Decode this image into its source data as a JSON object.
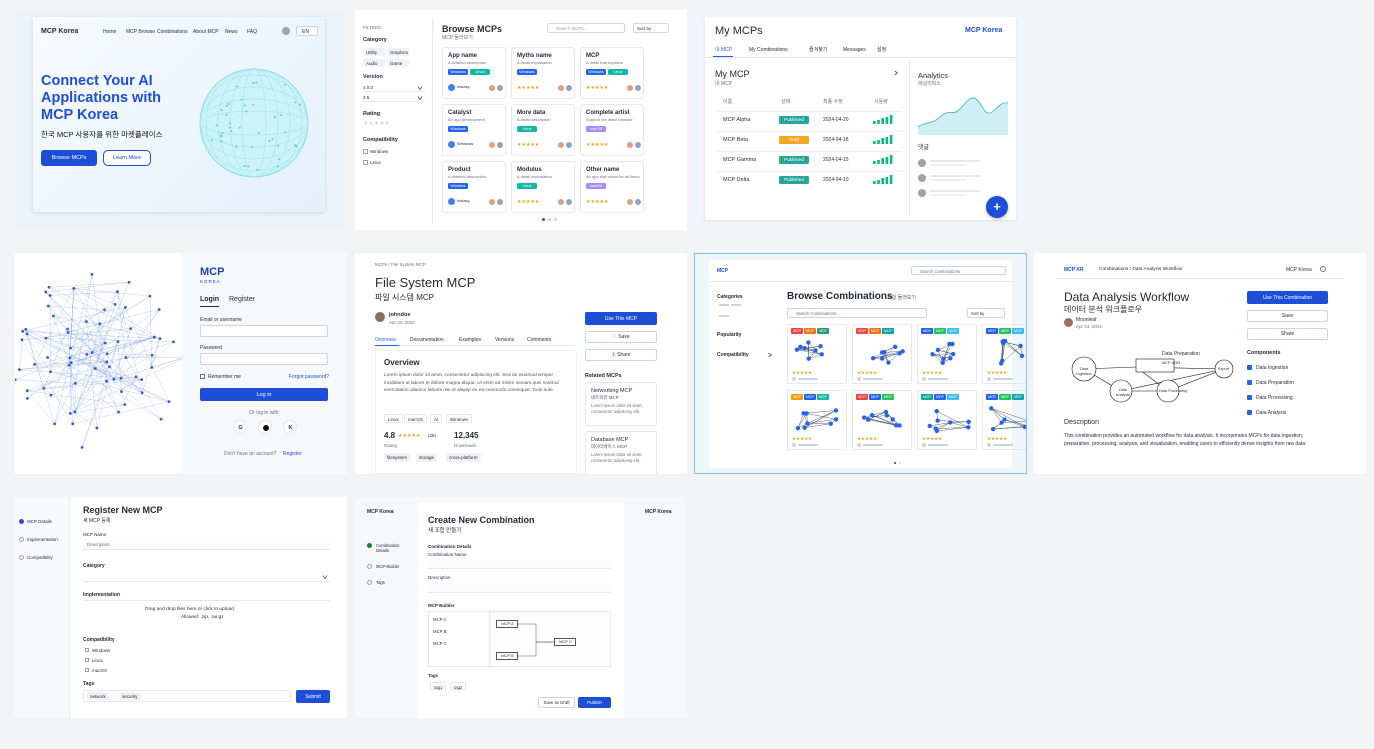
{
  "hero": {
    "brand": "MCP Korea",
    "nav": [
      "Home",
      "MCP Browse",
      "Combinations",
      "About MCP",
      "News",
      "FAQ"
    ],
    "lang": "EN",
    "title": "Connect Your AI Applications with MCP Korea",
    "subtitle": "한국 MCP 사용자를 위한 마켓플레이스",
    "primary_button": "Browse MCPs",
    "secondary_button": "Learn More"
  },
  "stars": "★★★★★",
  "browse": {
    "filters": "FILTERS",
    "category_label": "Category",
    "categories": [
      "Utility",
      "Graphics",
      "Audio",
      "Game"
    ],
    "version_label": "Version",
    "versions": [
      "4.0.0",
      "3.5"
    ],
    "rating_label": "Rating",
    "compat_label": "Compatibility",
    "compat": [
      "Windows",
      "Linux"
    ],
    "title": "Browse MCPs",
    "subtitle": "MCP 둘러보기",
    "search": "Search MCPs...",
    "sort": "Sort by",
    "cards": [
      {
        "name": "App name",
        "desc": "A detailed description",
        "tags": [
          "Windows",
          "Linux"
        ],
        "author": "Instasy"
      },
      {
        "name": "Myths name",
        "desc": "A detail explanation",
        "tags": [
          "Windows"
        ]
      },
      {
        "name": "MCP",
        "desc": "A detail that explains",
        "tags": [
          "Windows",
          "Linux"
        ]
      },
      {
        "name": "Catalyst",
        "desc": "An app development",
        "tags": [
          "Windows"
        ],
        "author": "Windows"
      },
      {
        "name": "More data",
        "desc": "A detail description",
        "tags": [
          "Linux"
        ]
      },
      {
        "name": "Complete artist",
        "desc": "Support the latest browser",
        "tags": [
          "macOS"
        ]
      },
      {
        "name": "Product",
        "desc": "A detailed description",
        "tags": [
          "Windows"
        ],
        "author": "Instasy"
      },
      {
        "name": "Modulus",
        "desc": "A detail explanation",
        "tags": [
          "Linux"
        ]
      },
      {
        "name": "Other name",
        "desc": "An app that works for all times",
        "tags": [
          "macOS"
        ]
      }
    ]
  },
  "my_mcps": {
    "title": "My MCPs",
    "brand": "MCP Korea",
    "tabs": [
      "내 MCP",
      "My Combinations",
      "즐겨찾기",
      "Messages",
      "설정"
    ],
    "section": "My MCP",
    "section_sub": "내 MCP",
    "columns": [
      "이름",
      "상태",
      "최종 수정",
      "사용량"
    ],
    "rows": [
      [
        "MCP Alpha",
        "Published",
        "2024-04-20"
      ],
      [
        "MCP Beta",
        "Draft",
        "2024-04-18"
      ],
      [
        "MCP Gamma",
        "Published",
        "2024-04-15"
      ],
      [
        "MCP Delta",
        "Published",
        "2024-04-10"
      ]
    ],
    "analytics": "Analytics",
    "analytics_sub": "애널리틱스",
    "comments": "댓글",
    "add_button": "+"
  },
  "login": {
    "logo": "MCP",
    "logo_sub": "KOREA",
    "tabs": [
      "Login",
      "Register"
    ],
    "email": "Email or username",
    "password": "Password",
    "remember": "Remember me",
    "forgot": "Forgot password?",
    "submit": "Log in",
    "or": "Or log in with",
    "social": [
      "G",
      "K"
    ],
    "no_account": "Don't have an account?",
    "register": "Register"
  },
  "detail": {
    "breadcrumb": "MCPs / File System MCP",
    "title": "File System MCP",
    "subtitle": "파일 시스템 MCP",
    "author": "johndoe",
    "date": "Apr 24, 2024",
    "tabs": [
      "Overview",
      "Documentation",
      "Examples",
      "Versions",
      "Comments"
    ],
    "overview_title": "Overview",
    "overview_text": "Lorem ipsum dolor sit amet, consectetur adipiscing elit. Sed do eiusmod tempor incididunt ut labore et dolore magna aliqua. Ut enim ad minim veniam quis nostrud exercitation ullamco laboris nisi ut aliquip ex ea commodo consequat. Duis aute",
    "platforms": [
      "Linux",
      "macOS",
      "AI",
      "Windows"
    ],
    "rating": "4.8",
    "rating_count": "(28)",
    "rating_label": "Rating",
    "downloads": "12,345",
    "downloads_label": "Downloads",
    "keywords": [
      "filesystem",
      "storage",
      "cross-platform"
    ],
    "actions": [
      "Use This MCP",
      "♡ Save",
      "⇪ Share"
    ],
    "related_label": "Related MCPs",
    "related": [
      {
        "name": "Networking MCP",
        "subtitle": "네트워킹 MCP",
        "desc": "Lorem ipsum dolor sit amet, consectetur adipiscing elit."
      },
      {
        "name": "Database MCP",
        "subtitle": "데이터베이스 MCP",
        "desc": "Lorem ipsum dolor sit amet, consectetur adipiscing elit."
      }
    ]
  },
  "combos": {
    "logo": "MCP",
    "search_top": "Search Combinations",
    "title": "Browse Combinations",
    "subtitle": "조합 둘러보기",
    "sidebar": [
      "Categories",
      "Popularity",
      "Compatibility"
    ],
    "search": "Search Combinations...",
    "sort": "Sort by",
    "tag": "MCP"
  },
  "workflow": {
    "logo": "MCP KR",
    "breadcrumb": "Combinations / Data Analysis Workflow",
    "brand": "MCP Korea",
    "title": "Data Analysis Workflow",
    "subtitle": "데이터 분석 워크플로우",
    "author": "Moonleaf",
    "date": "Apr 24, 2024",
    "buttons": [
      "Use This Combination",
      "Save",
      "Share"
    ],
    "components_label": "Components",
    "components": [
      "Data Ingestion",
      "Data Preparation",
      "Data Processing",
      "Data Analysis"
    ],
    "nodes": [
      "Data Ingestion",
      "Data Preparation",
      "MCP-4253",
      "Data Analysis",
      "Data Processing",
      "Export"
    ],
    "description_label": "Description",
    "description": "This combination provides an automated workflow for data analysis. It incorporates MCPs for data ingestion, preparation, processing, analysis, and visualization, enabling users to efficiently derive insights from raw data."
  },
  "register": {
    "steps": [
      "MCP Details",
      "Implementation",
      "Compatibility"
    ],
    "title": "Register New MCP",
    "subtitle": "새 MCP 등록",
    "name_label": "MCP Name",
    "name_placeholder": "Description",
    "category_label": "Category",
    "implementation_label": "Implementation",
    "drop_text": "Drag and drop files here or click to upload",
    "allowed": "Allowed: .zip, .tar.gz",
    "compat_label": "Compatibility",
    "compat": [
      "Windows",
      "Linux",
      "macOS"
    ],
    "tags_label": "Tags",
    "tags": [
      "network",
      "security"
    ],
    "submit": "Submit"
  },
  "create": {
    "brand": "MCP Korea",
    "steps": [
      "Combination Details",
      "MCP Builder",
      "Tags"
    ],
    "title": "Create New Combination",
    "subtitle": "새 조합 만들기",
    "details_label": "Combination Details",
    "name_label": "Combination Name",
    "description_label": "Description",
    "builder_label": "MCP Builder",
    "mcps": [
      "MCP A",
      "MCP B",
      "MCP C"
    ],
    "tags_label": "Tags",
    "tags": [
      "tag1",
      "tag2"
    ],
    "draft": "Save as Draft",
    "publish": "Publish"
  }
}
